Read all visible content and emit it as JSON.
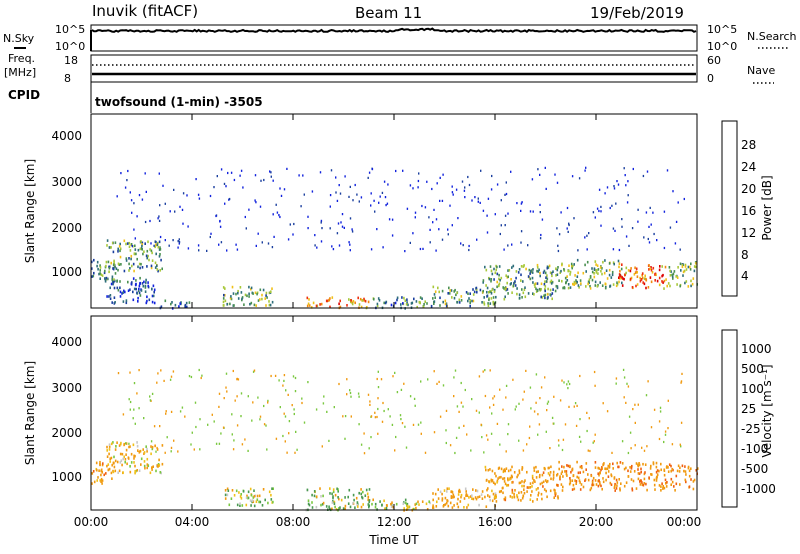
{
  "header": {
    "station": "Inuvik (fitACF)",
    "beam": "Beam 11",
    "date": "19/Feb/2019"
  },
  "strip_nsky": {
    "label": "N.Sky",
    "ticks": [
      "10^5",
      "10^0"
    ],
    "right_ticks": [
      "10^5",
      "10^0"
    ],
    "right_label": "N.Search"
  },
  "strip_freq": {
    "label_line1": "Freq.",
    "label_line2": "[MHz]",
    "ticks": [
      "18",
      "8"
    ],
    "right_ticks": [
      "60",
      "0"
    ],
    "right_label": "Nave"
  },
  "strip_cpid": {
    "label": "CPID",
    "text": "twofsound (1-min) -3505"
  },
  "power_panel": {
    "ylabel": "Slant Range [km]",
    "yticks": [
      "4000",
      "3000",
      "2000",
      "1000"
    ],
    "colorbar_label": "Power [dB]",
    "colorbar_ticks": [
      "28",
      "24",
      "20",
      "16",
      "12",
      "8",
      "4"
    ],
    "colors": [
      "#1122dd",
      "#1b3f9e",
      "#2e6e7a",
      "#4a9050",
      "#a8c83a",
      "#f0c018",
      "#f08a10",
      "#ee3010",
      "#dd0000"
    ]
  },
  "velocity_panel": {
    "ylabel": "Slant Range [km]",
    "yticks": [
      "4000",
      "3000",
      "2000",
      "1000"
    ],
    "colorbar_label": "Velocity [m s⁻¹]",
    "colorbar_ticks": [
      "1000",
      "500",
      "100",
      "25",
      "-25",
      "-100",
      "-500",
      "-1000"
    ],
    "colors": [
      "#1a3aa8",
      "#2e6e7a",
      "#4a9a50",
      "#7ac840",
      "#c8c8c8",
      "#f0c018",
      "#f09a10",
      "#f06010",
      "#dd0000"
    ]
  },
  "xaxis": {
    "label": "Time UT",
    "ticks": [
      "00:00",
      "04:00",
      "08:00",
      "12:00",
      "16:00",
      "20:00",
      "00:00"
    ]
  },
  "chart_data": [
    {
      "type": "heatmap",
      "panel": "power",
      "x_range_hours": [
        0,
        24
      ],
      "y_range_km": [
        180,
        4600
      ],
      "color_range_db": [
        0,
        32
      ],
      "ylabel": "Slant Range [km]",
      "colorbar_label": "Power [dB]",
      "scatter_regions": [
        {
          "t0": 0.0,
          "t1": 1.0,
          "r0": 800,
          "r1": 1300,
          "dB": 10
        },
        {
          "t0": 0.6,
          "t1": 2.8,
          "r0": 1050,
          "r1": 1750,
          "dB": 12
        },
        {
          "t0": 0.5,
          "t1": 2.5,
          "r0": 300,
          "r1": 900,
          "dB": 6
        },
        {
          "t0": 2.6,
          "t1": 3.9,
          "r0": 200,
          "r1": 380,
          "dB": 6
        },
        {
          "t0": 5.2,
          "t1": 7.2,
          "r0": 250,
          "r1": 700,
          "dB": 14
        },
        {
          "t0": 8.5,
          "t1": 11.0,
          "r0": 200,
          "r1": 450,
          "dB": 22
        },
        {
          "t0": 11.0,
          "t1": 13.5,
          "r0": 200,
          "r1": 450,
          "dB": 10
        },
        {
          "t0": 13.5,
          "t1": 16.0,
          "r0": 250,
          "r1": 700,
          "dB": 12
        },
        {
          "t0": 15.5,
          "t1": 18.5,
          "r0": 400,
          "r1": 1200,
          "dB": 12
        },
        {
          "t0": 18.5,
          "t1": 21.0,
          "r0": 650,
          "r1": 1300,
          "dB": 14
        },
        {
          "t0": 20.8,
          "t1": 22.8,
          "r0": 650,
          "r1": 1200,
          "dB": 24
        },
        {
          "t0": 22.8,
          "t1": 24.0,
          "r0": 700,
          "r1": 1250,
          "dB": 14
        }
      ]
    },
    {
      "type": "heatmap",
      "panel": "velocity",
      "x_range_hours": [
        0,
        24
      ],
      "y_range_km": [
        180,
        4600
      ],
      "color_range_ms": [
        -1000,
        1000
      ],
      "ylabel": "Slant Range [km]",
      "colorbar_label": "Velocity [m s⁻¹]",
      "scatter_regions": [
        {
          "t0": 0.0,
          "t1": 1.0,
          "r0": 800,
          "r1": 1300,
          "v": -300
        },
        {
          "t0": 0.6,
          "t1": 2.8,
          "r0": 1050,
          "r1": 1750,
          "v": -150
        },
        {
          "t0": 5.2,
          "t1": 7.2,
          "r0": 300,
          "r1": 700,
          "v": 0
        },
        {
          "t0": 8.5,
          "t1": 11.0,
          "r0": 200,
          "r1": 700,
          "v": 60
        },
        {
          "t0": 11.0,
          "t1": 13.5,
          "r0": 200,
          "r1": 450,
          "v": -50
        },
        {
          "t0": 13.5,
          "t1": 16.0,
          "r0": 250,
          "r1": 700,
          "v": -200
        },
        {
          "t0": 15.5,
          "t1": 18.5,
          "r0": 400,
          "r1": 1200,
          "v": -300
        },
        {
          "t0": 18.5,
          "t1": 24.0,
          "r0": 650,
          "r1": 1300,
          "v": -400
        }
      ]
    }
  ]
}
